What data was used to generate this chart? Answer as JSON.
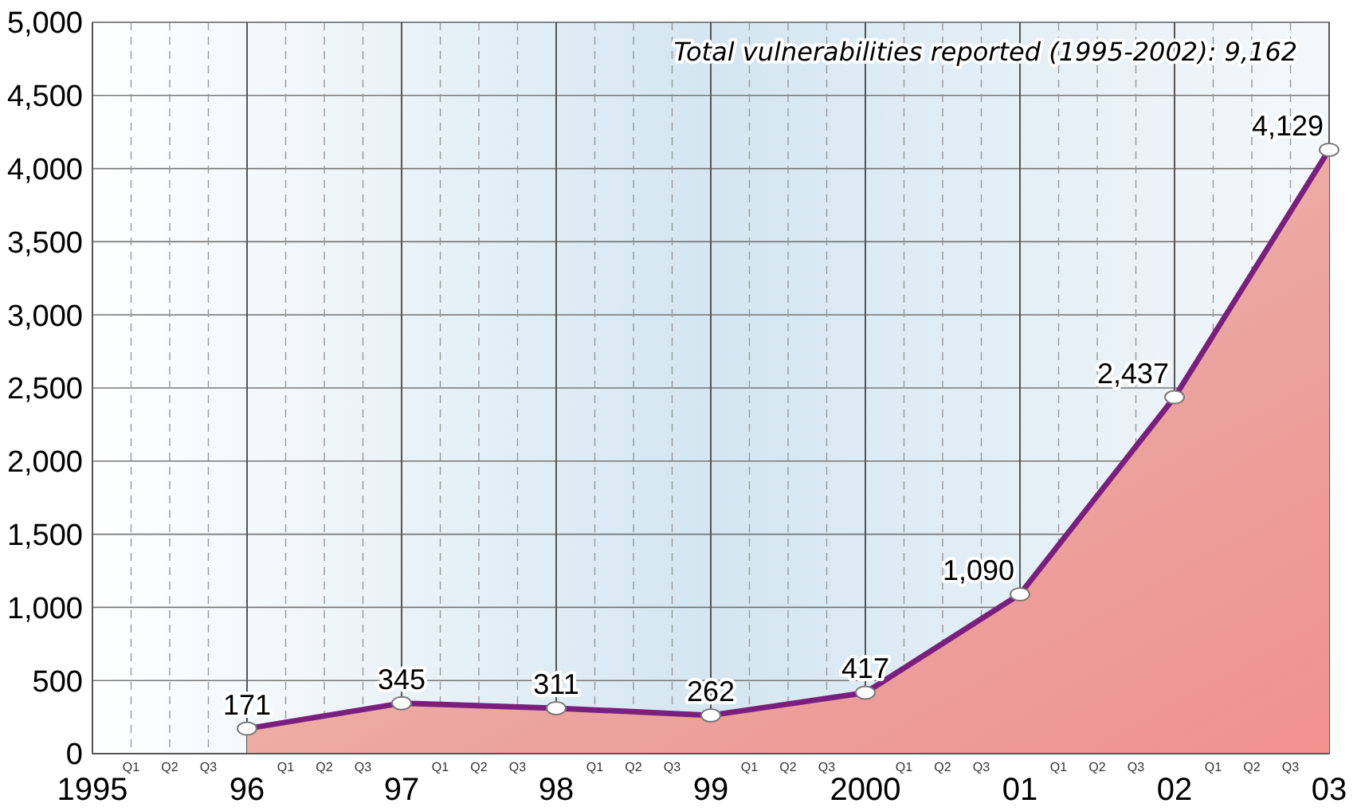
{
  "chart_data": {
    "type": "area",
    "categories": [
      "1995",
      "Q1",
      "Q2",
      "Q3",
      "96",
      "Q1",
      "Q2",
      "Q3",
      "97",
      "Q1",
      "Q2",
      "Q3",
      "98",
      "Q1",
      "Q2",
      "Q3",
      "99",
      "Q1",
      "Q2",
      "Q3",
      "2000",
      "Q1",
      "Q2",
      "Q3",
      "01",
      "Q1",
      "Q2",
      "Q3",
      "02",
      "Q1",
      "Q2",
      "Q3",
      "03"
    ],
    "series": [
      {
        "color": "#7a1f7e",
        "values": [
          null,
          null,
          null,
          null,
          171,
          null,
          null,
          null,
          345,
          null,
          null,
          null,
          311,
          null,
          null,
          null,
          262,
          null,
          null,
          null,
          417,
          null,
          null,
          null,
          1090,
          null,
          null,
          null,
          2437,
          null,
          null,
          null,
          4129
        ],
        "value_labels": [
          null,
          null,
          null,
          null,
          "171",
          null,
          null,
          null,
          "345",
          null,
          null,
          null,
          "311",
          null,
          null,
          null,
          "262",
          null,
          null,
          null,
          "417",
          null,
          null,
          null,
          "1,090",
          null,
          null,
          null,
          "2,437",
          null,
          null,
          null,
          "4,129"
        ]
      }
    ],
    "ylim": [
      0,
      5000
    ],
    "yticks": [
      {
        "value": 0,
        "label": "0"
      },
      {
        "value": 500,
        "label": "500"
      },
      {
        "value": 1000,
        "label": "1,000"
      },
      {
        "value": 1500,
        "label": "1,500"
      },
      {
        "value": 2000,
        "label": "2,000"
      },
      {
        "value": 2500,
        "label": "2,500"
      },
      {
        "value": 3000,
        "label": "3,000"
      },
      {
        "value": 3500,
        "label": "3,500"
      },
      {
        "value": 4000,
        "label": "4,000"
      },
      {
        "value": 4500,
        "label": "4,500"
      },
      {
        "value": 5000,
        "label": "5,000"
      }
    ],
    "grid": true,
    "marker": "circle",
    "line_style": "solid",
    "annotations": [
      "Total vulnerabilities reported (1995-2002): 9,162"
    ]
  }
}
